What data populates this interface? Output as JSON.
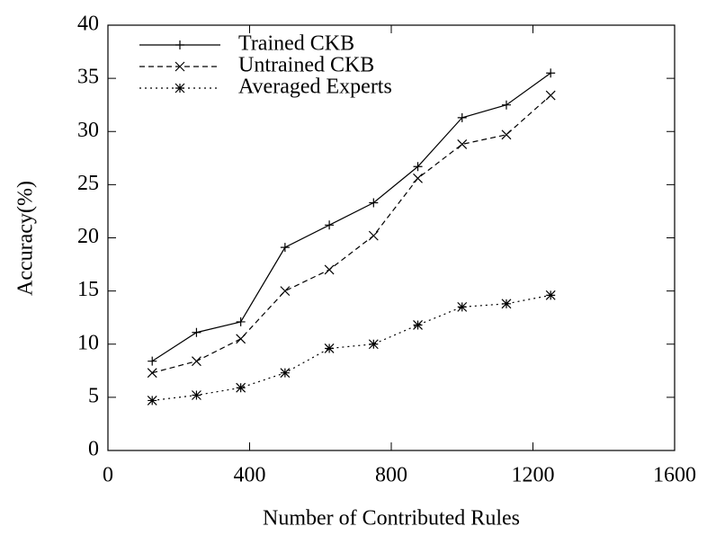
{
  "chart_data": {
    "type": "line",
    "xlabel": "Number of Contributed Rules",
    "ylabel": "Accuracy(%)",
    "x": [
      125,
      250,
      375,
      500,
      625,
      750,
      875,
      1000,
      1125,
      1250
    ],
    "series": [
      {
        "name": "Trained CKB",
        "color": "#000000",
        "dash": "solid",
        "marker": "plus",
        "values": [
          8.4,
          11.1,
          12.1,
          19.1,
          21.2,
          23.3,
          26.7,
          31.3,
          32.5,
          35.5
        ]
      },
      {
        "name": "Untrained CKB",
        "color": "#000000",
        "dash": "dashed",
        "marker": "cross",
        "values": [
          7.3,
          8.4,
          10.5,
          15.0,
          17.0,
          20.2,
          25.6,
          28.8,
          29.7,
          33.4
        ]
      },
      {
        "name": "Averaged Experts",
        "color": "#000000",
        "dash": "dotted",
        "marker": "star",
        "values": [
          4.7,
          5.2,
          5.9,
          7.3,
          9.6,
          10.0,
          11.8,
          13.5,
          13.8,
          14.6
        ]
      }
    ],
    "xlim": [
      0,
      1600
    ],
    "xticks": [
      0,
      400,
      800,
      1200,
      1600
    ],
    "ylim": [
      0,
      40
    ],
    "yticks": [
      0,
      5,
      10,
      15,
      20,
      25,
      30,
      35,
      40
    ],
    "grid": false,
    "legend": "top-left"
  }
}
